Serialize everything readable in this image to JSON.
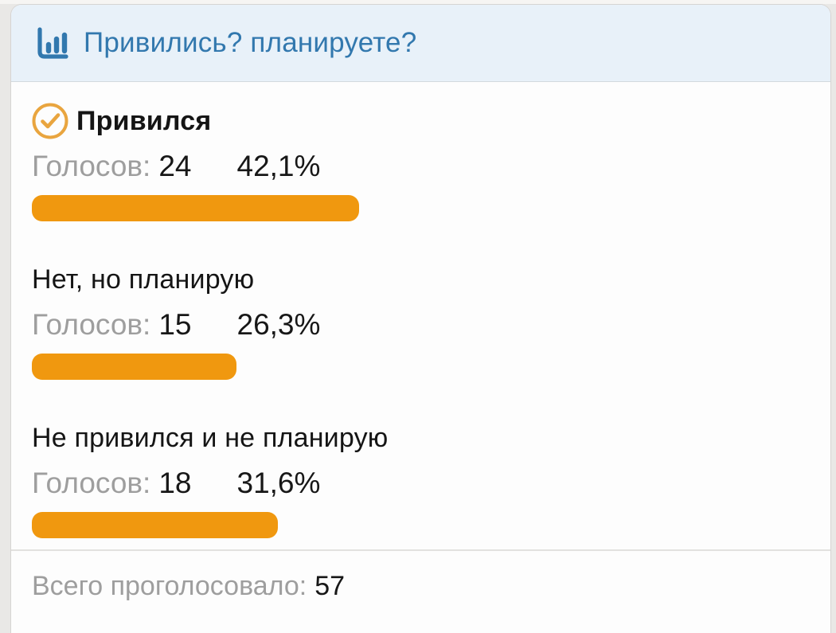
{
  "colors": {
    "bar": "#f0980f",
    "header_bg": "#e8f1f9",
    "header_text": "#3278ae",
    "voted_check": "#e9a53f",
    "muted_text": "#9e9e9e"
  },
  "poll": {
    "title": "Привились? планируете?",
    "title_icon": "bar-chart-icon",
    "votes_label": "Голосов:",
    "options": [
      {
        "label": "Привился",
        "votes": "24",
        "percent": "42,1%",
        "percent_value": 42.1,
        "voted": true
      },
      {
        "label": "Нет, но планирую",
        "votes": "15",
        "percent": "26,3%",
        "percent_value": 26.3,
        "voted": false
      },
      {
        "label": "Не привился и не планирую",
        "votes": "18",
        "percent": "31,6%",
        "percent_value": 31.6,
        "voted": false
      }
    ],
    "footer": {
      "label": "Всего проголосовало:",
      "total": "57"
    }
  },
  "chart_data": {
    "type": "bar",
    "orientation": "horizontal",
    "title": "Привились? планируете?",
    "categories": [
      "Привился",
      "Нет, но планирую",
      "Не привился и не планирую"
    ],
    "series": [
      {
        "name": "Голосов",
        "values": [
          24,
          15,
          18
        ]
      },
      {
        "name": "Процент",
        "values": [
          42.1,
          26.3,
          31.6
        ]
      }
    ],
    "total_votes": 57,
    "xlim": [
      0,
      100
    ],
    "grid": false,
    "legend": false
  }
}
